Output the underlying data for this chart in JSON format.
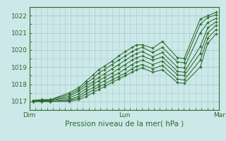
{
  "title": "",
  "xlabel": "Pression niveau de la mer( hPa )",
  "ylabel": "",
  "bg_color": "#cce8e8",
  "grid_color": "#aacccc",
  "line_color": "#2d6b2d",
  "tick_label_color": "#2d6b2d",
  "axis_label_color": "#2d6b2d",
  "xlim": [
    0,
    2.0
  ],
  "ylim": [
    1016.5,
    1022.5
  ],
  "yticks": [
    1017,
    1018,
    1019,
    1020,
    1021,
    1022
  ],
  "xtick_positions": [
    0.0,
    1.0,
    2.0
  ],
  "xtick_labels": [
    "Dim",
    "Lun",
    "Mar"
  ],
  "series": [
    [
      0.04,
      1017.05,
      0.13,
      1017.1,
      0.22,
      1017.1,
      0.42,
      1017.5,
      0.52,
      1017.8,
      0.6,
      1018.2,
      0.67,
      1018.55,
      0.73,
      1018.85,
      0.79,
      1019.05,
      0.87,
      1019.35,
      0.94,
      1019.65,
      1.01,
      1019.9,
      1.08,
      1020.15,
      1.13,
      1020.3,
      1.19,
      1020.3,
      1.3,
      1020.1,
      1.4,
      1020.5,
      1.56,
      1019.55,
      1.63,
      1019.5,
      1.8,
      1021.8,
      1.88,
      1022.0,
      1.97,
      1022.2
    ],
    [
      0.04,
      1017.05,
      0.13,
      1017.1,
      0.22,
      1017.1,
      0.42,
      1017.4,
      0.52,
      1017.7,
      0.6,
      1018.05,
      0.67,
      1018.35,
      0.73,
      1018.65,
      0.79,
      1018.85,
      0.87,
      1019.15,
      0.94,
      1019.4,
      1.01,
      1019.65,
      1.08,
      1019.9,
      1.13,
      1020.05,
      1.19,
      1020.15,
      1.3,
      1019.85,
      1.4,
      1020.15,
      1.56,
      1019.3,
      1.63,
      1019.25,
      1.8,
      1021.5,
      1.88,
      1021.9,
      1.97,
      1022.05
    ],
    [
      0.04,
      1017.05,
      0.13,
      1017.05,
      0.22,
      1017.05,
      0.42,
      1017.3,
      0.52,
      1017.6,
      0.6,
      1017.9,
      0.67,
      1018.15,
      0.73,
      1018.4,
      0.79,
      1018.6,
      0.87,
      1018.9,
      0.94,
      1019.15,
      1.01,
      1019.4,
      1.08,
      1019.65,
      1.13,
      1019.8,
      1.19,
      1019.9,
      1.3,
      1019.6,
      1.4,
      1019.85,
      1.56,
      1019.0,
      1.63,
      1018.95,
      1.8,
      1021.0,
      1.88,
      1021.6,
      1.97,
      1021.85
    ],
    [
      0.04,
      1017.05,
      0.13,
      1017.05,
      0.22,
      1017.05,
      0.42,
      1017.2,
      0.52,
      1017.45,
      0.6,
      1017.75,
      0.67,
      1018.0,
      0.73,
      1018.2,
      0.79,
      1018.4,
      0.87,
      1018.65,
      0.94,
      1018.9,
      1.01,
      1019.15,
      1.08,
      1019.4,
      1.13,
      1019.55,
      1.19,
      1019.65,
      1.3,
      1019.4,
      1.4,
      1019.6,
      1.56,
      1018.75,
      1.63,
      1018.7,
      1.8,
      1020.2,
      1.88,
      1021.3,
      1.97,
      1021.65
    ],
    [
      0.04,
      1017.0,
      0.13,
      1017.0,
      0.22,
      1017.0,
      0.42,
      1017.1,
      0.52,
      1017.3,
      0.6,
      1017.6,
      0.67,
      1017.8,
      0.73,
      1018.0,
      0.79,
      1018.2,
      0.87,
      1018.45,
      0.94,
      1018.65,
      1.01,
      1018.9,
      1.08,
      1019.15,
      1.13,
      1019.3,
      1.19,
      1019.4,
      1.3,
      1019.15,
      1.4,
      1019.35,
      1.56,
      1018.55,
      1.63,
      1018.5,
      1.8,
      1019.8,
      1.88,
      1021.0,
      1.97,
      1021.45
    ],
    [
      0.04,
      1017.0,
      0.13,
      1017.0,
      0.22,
      1017.0,
      0.42,
      1017.05,
      0.52,
      1017.2,
      0.6,
      1017.45,
      0.67,
      1017.65,
      0.73,
      1017.85,
      0.79,
      1018.0,
      0.87,
      1018.25,
      0.94,
      1018.45,
      1.01,
      1018.65,
      1.08,
      1018.9,
      1.13,
      1019.05,
      1.19,
      1019.15,
      1.3,
      1018.9,
      1.4,
      1019.1,
      1.56,
      1018.3,
      1.63,
      1018.25,
      1.8,
      1019.4,
      1.88,
      1020.7,
      1.97,
      1021.2
    ],
    [
      0.04,
      1017.0,
      0.13,
      1017.0,
      0.22,
      1017.0,
      0.42,
      1017.0,
      0.52,
      1017.1,
      0.6,
      1017.3,
      0.67,
      1017.5,
      0.73,
      1017.7,
      0.79,
      1017.85,
      0.87,
      1018.1,
      0.94,
      1018.3,
      1.01,
      1018.5,
      1.08,
      1018.7,
      1.13,
      1018.85,
      1.19,
      1018.95,
      1.3,
      1018.7,
      1.4,
      1018.85,
      1.56,
      1018.1,
      1.63,
      1018.05,
      1.8,
      1019.0,
      1.88,
      1020.4,
      1.97,
      1020.95
    ]
  ]
}
